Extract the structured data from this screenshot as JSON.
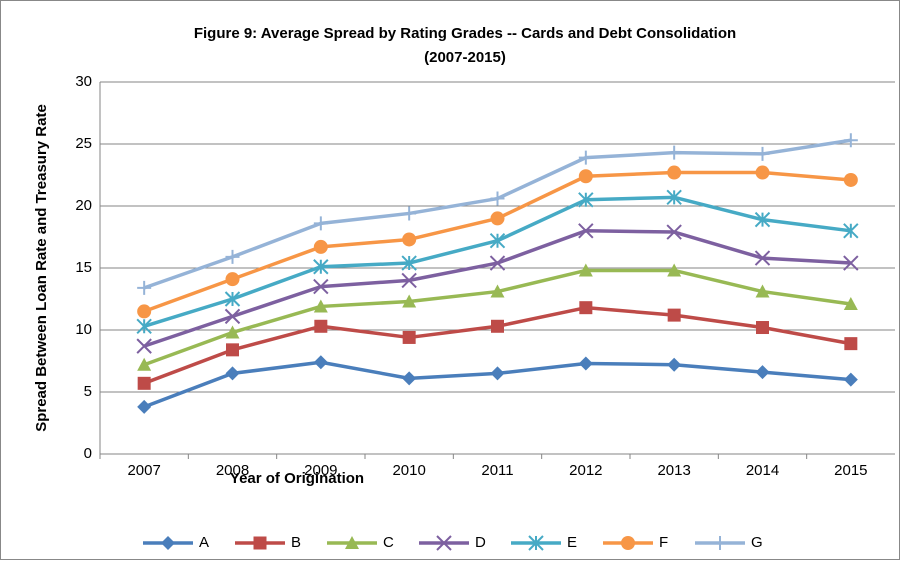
{
  "chart_data": {
    "type": "line",
    "title": [
      "Figure 9: Average Spread by Rating Grades -- Cards and Debt Consolidation",
      "(2007-2015)"
    ],
    "x_label": "Year of Origination",
    "y_label": "Spread Between Loan Rate and Treasury Rate",
    "categories": [
      "2007",
      "2008",
      "2009",
      "2010",
      "2011",
      "2012",
      "2013",
      "2014",
      "2015"
    ],
    "series": [
      {
        "name": "A",
        "color": "#4a7ebb",
        "marker": "diamond",
        "values": [
          3.8,
          6.5,
          7.4,
          6.1,
          6.5,
          7.3,
          7.2,
          6.6,
          6.0
        ]
      },
      {
        "name": "B",
        "color": "#be4b48",
        "marker": "square",
        "values": [
          5.7,
          8.4,
          10.3,
          9.4,
          10.3,
          11.8,
          11.2,
          10.2,
          8.9
        ]
      },
      {
        "name": "C",
        "color": "#98b954",
        "marker": "triangle",
        "values": [
          7.2,
          9.8,
          11.9,
          12.3,
          13.1,
          14.8,
          14.8,
          13.1,
          12.1
        ]
      },
      {
        "name": "D",
        "color": "#7d60a0",
        "marker": "x",
        "values": [
          8.7,
          11.1,
          13.5,
          14.0,
          15.4,
          18.0,
          17.9,
          15.8,
          15.4
        ]
      },
      {
        "name": "E",
        "color": "#46aac5",
        "marker": "star",
        "values": [
          10.3,
          12.5,
          15.1,
          15.4,
          17.2,
          20.5,
          20.7,
          18.9,
          18.0
        ]
      },
      {
        "name": "F",
        "color": "#f79646",
        "marker": "circle",
        "values": [
          11.5,
          14.1,
          16.7,
          17.3,
          19.0,
          22.4,
          22.7,
          22.7,
          22.1
        ]
      },
      {
        "name": "G",
        "color": "#95b3d7",
        "marker": "plus",
        "values": [
          13.4,
          15.9,
          18.6,
          19.4,
          20.6,
          23.9,
          24.3,
          24.2,
          25.3
        ]
      }
    ],
    "ylim": [
      0,
      30
    ],
    "yticks": [
      0,
      5,
      10,
      15,
      20,
      25,
      30
    ],
    "grid": true,
    "legend": "bottom"
  }
}
